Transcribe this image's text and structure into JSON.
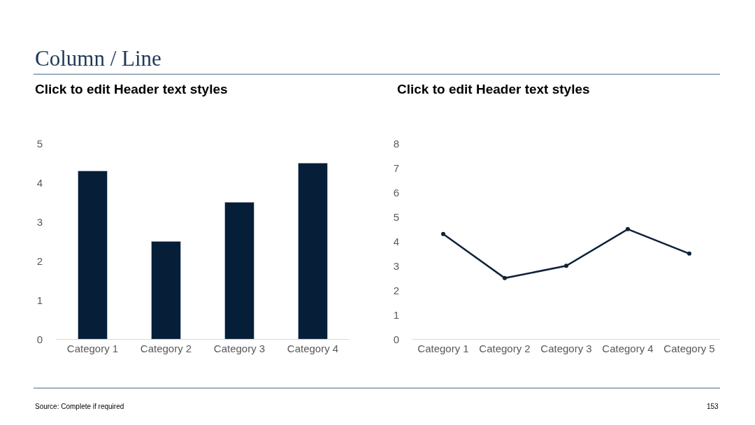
{
  "chart_data": [
    {
      "type": "bar",
      "title": "Click to edit Header text styles",
      "categories": [
        "Category 1",
        "Category 2",
        "Category 3",
        "Category 4"
      ],
      "values": [
        4.3,
        2.5,
        3.5,
        4.5
      ],
      "color": "#061e38",
      "ylim": [
        0,
        5
      ],
      "yticks": [
        0,
        1,
        2,
        3,
        4,
        5
      ],
      "annotations": [
        "Column / Line",
        "Source: Complete if required",
        "153"
      ]
    },
    {
      "type": "line",
      "title": "Click to edit Header text styles",
      "categories": [
        "Category 1",
        "Category 2",
        "Category 3",
        "Category 4",
        "Category 5"
      ],
      "values": [
        4.3,
        2.5,
        3,
        4.5,
        3.5
      ],
      "color": "#0e2238",
      "marker": "circle",
      "line_style": "solid",
      "ylim": [
        0,
        8
      ],
      "yticks": [
        0,
        1,
        2,
        3,
        4,
        5,
        6,
        7,
        8
      ]
    }
  ]
}
